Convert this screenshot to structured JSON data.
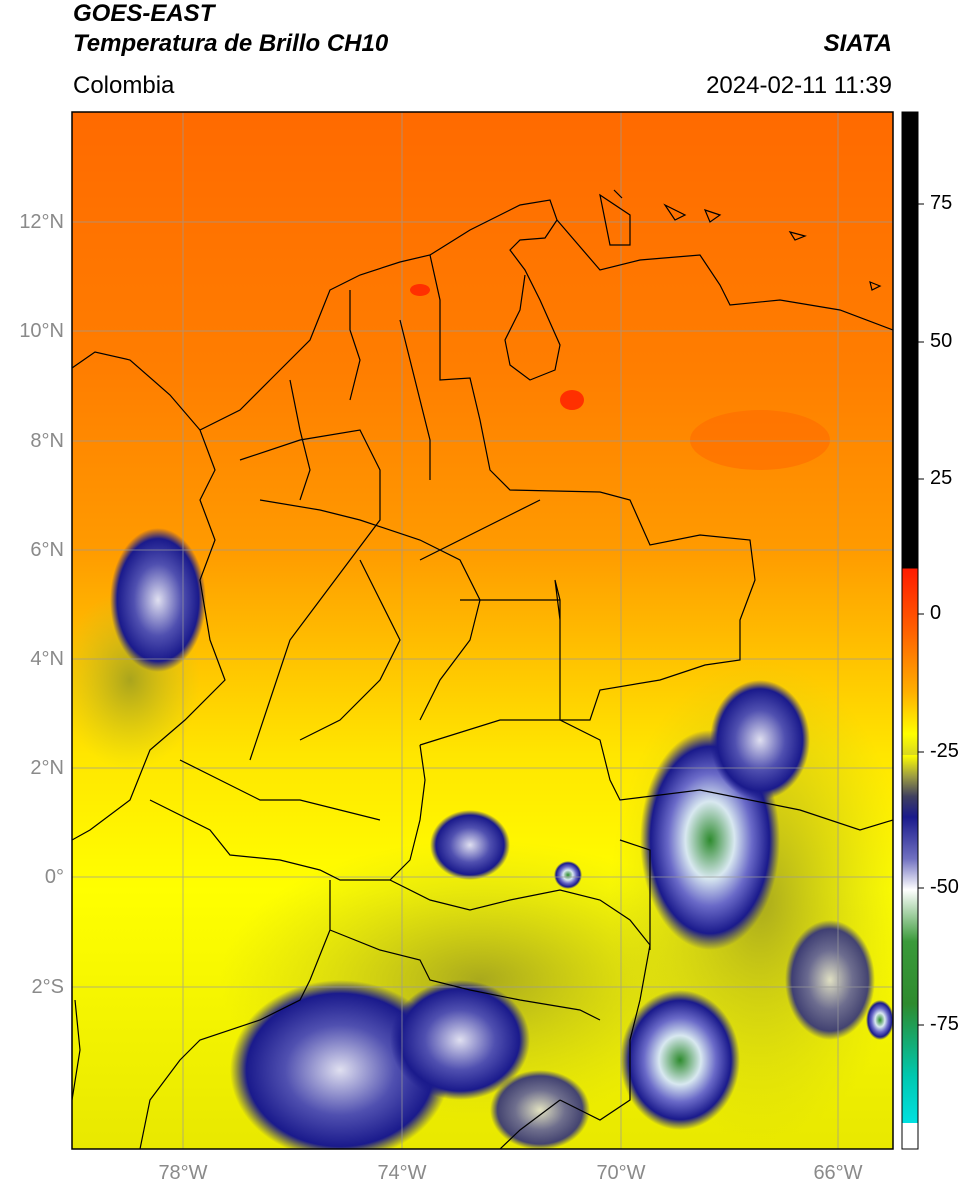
{
  "header": {
    "satellite": "GOES-EAST",
    "product": "Temperatura de Brillo CH10",
    "organization": "SIATA",
    "region": "Colombia",
    "datetime": "2024-02-11 11:39"
  },
  "axes": {
    "lat_labels": [
      "12°N",
      "10°N",
      "8°N",
      "6°N",
      "4°N",
      "2°N",
      "0°",
      "2°S"
    ],
    "lon_labels": [
      "78°W",
      "74°W",
      "70°W",
      "66°W"
    ]
  },
  "colorbar": {
    "tick_labels": [
      "75",
      "50",
      "25",
      "0",
      "-25",
      "-50",
      "-75"
    ],
    "colors": {
      "warm_top": "#000000",
      "red": "#ff1a00",
      "orange": "#ff7a00",
      "yellow": "#ffff00",
      "olive": "#b8b820",
      "navy": "#1a1a8c",
      "white": "#ffffff",
      "green": "#2e8b2e",
      "teal": "#00d0c0"
    }
  },
  "map_features": {
    "cold_cloud_clusters": "deep convection over Pacific coast, Amazon and eastern border",
    "coastline_color": "#000000",
    "grid_color": "#999999"
  }
}
